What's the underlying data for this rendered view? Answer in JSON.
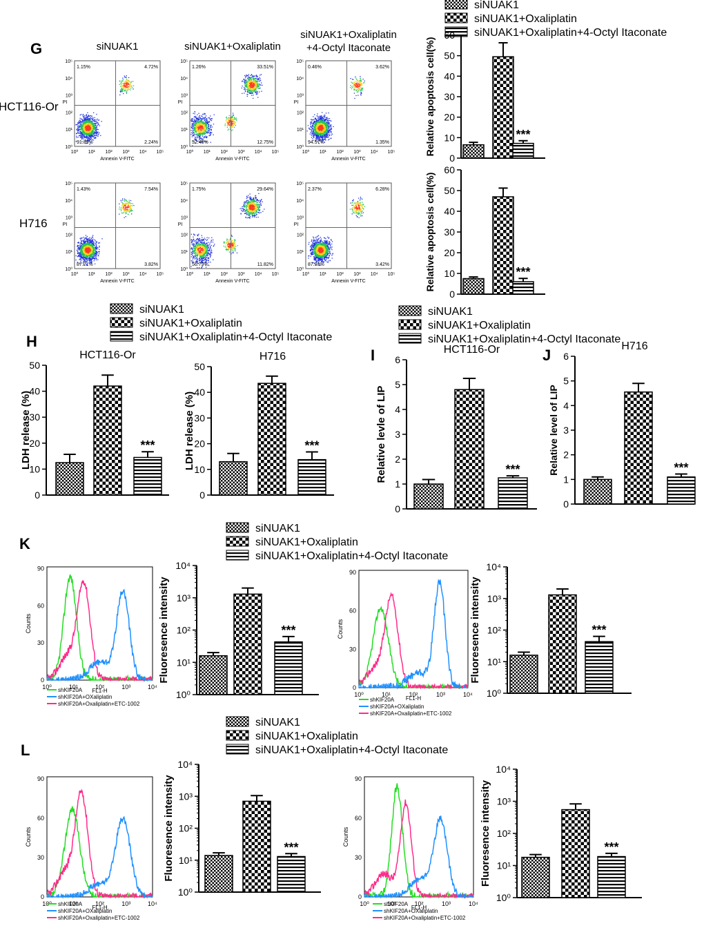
{
  "panel_letters": {
    "G": "G",
    "H": "H",
    "I": "I",
    "J": "J",
    "K": "K",
    "L": "L"
  },
  "legend": {
    "items": [
      "siNUAK1",
      "siNUAK1+Oxaliplatin",
      "siNUAK1+Oxaliplatin+4-Octyl Itaconate"
    ]
  },
  "flow_G": {
    "columns": [
      "siNUAK1",
      "siNUAK1+Oxaliplatin",
      "siNUAK1+Oxaliplatin\n+4-Octyl Itaconate"
    ],
    "rows": [
      "HCT116-Or",
      "H716"
    ],
    "xlabel": "Annexin V-FITC",
    "ylabel": "PI",
    "ticks": [
      "10⁰",
      "10¹",
      "10²",
      "10³",
      "10⁴",
      "10⁵"
    ],
    "quadrants": [
      [
        [
          "1.15%",
          "4.72%",
          "91.89%",
          "2.24%"
        ],
        [
          "1.26%",
          "33.51%",
          "52.48%",
          "12.75%"
        ],
        [
          "0.46%",
          "3.62%",
          "94.57%",
          "1.35%"
        ]
      ],
      [
        [
          "1.43%",
          "7.54%",
          "87.21%",
          "3.82%"
        ],
        [
          "1.75%",
          "29.64%",
          "56.79%",
          "11.82%"
        ],
        [
          "2.37%",
          "6.28%",
          "87.93%",
          "3.42%"
        ]
      ]
    ]
  },
  "hist": {
    "xlabel": "FL1-H",
    "ylabel": "Counts",
    "xticks": [
      "10⁰",
      "10¹",
      "10²",
      "10³",
      "10⁴"
    ],
    "yticks": [
      "0",
      "30",
      "60",
      "90"
    ],
    "legend": [
      "shKIF20A",
      "shKIF20A+OXaliplatin",
      "shKIF20A+Oxaliplatin+ETC-1002"
    ],
    "colors": [
      "#22dd22",
      "#1e90ff",
      "#ff2a8a"
    ]
  },
  "chart_data": [
    {
      "type": "bar",
      "id": "G1",
      "categories": [
        "siNUAK1",
        "siNUAK1+Oxaliplatin",
        "siNUAK1+Oxaliplatin+4-Octyl Itaconate"
      ],
      "values": [
        6.5,
        49.5,
        7.2
      ],
      "errors": [
        1.2,
        6.8,
        1.3
      ],
      "ylabel": "Relative apoptosis cell(%)",
      "ylim": [
        0,
        60
      ],
      "yticks": [
        0,
        10,
        20,
        30,
        40,
        50,
        60
      ],
      "annotation": "***"
    },
    {
      "type": "bar",
      "id": "G2",
      "categories": [
        "siNUAK1",
        "siNUAK1+Oxaliplatin",
        "siNUAK1+Oxaliplatin+4-Octyl Itaconate"
      ],
      "values": [
        7.5,
        47.0,
        6.0
      ],
      "errors": [
        0.8,
        4.2,
        1.6
      ],
      "ylabel": "Relative apoptosis cell(%)",
      "ylim": [
        0,
        60
      ],
      "yticks": [
        0,
        10,
        20,
        30,
        40,
        50,
        60
      ],
      "annotation": "***"
    },
    {
      "type": "bar",
      "id": "H1",
      "title": "HCT116-Or",
      "categories": [
        "siNUAK1",
        "siNUAK1+Oxaliplatin",
        "siNUAK1+Oxaliplatin+4-Octyl Itaconate"
      ],
      "values": [
        12.5,
        42.0,
        14.5
      ],
      "errors": [
        3.2,
        4.2,
        2.2
      ],
      "ylabel": "LDH release (%)",
      "ylim": [
        0,
        50
      ],
      "yticks": [
        0,
        10,
        20,
        30,
        40,
        50
      ],
      "annotation": "***"
    },
    {
      "type": "bar",
      "id": "H2",
      "title": "H716",
      "categories": [
        "siNUAK1",
        "siNUAK1+Oxaliplatin",
        "siNUAK1+Oxaliplatin+4-Octyl Itaconate"
      ],
      "values": [
        13.0,
        43.5,
        13.8
      ],
      "errors": [
        3.2,
        2.8,
        3.0
      ],
      "ylabel": "LDH release (%)",
      "ylim": [
        0,
        50
      ],
      "yticks": [
        0,
        10,
        20,
        30,
        40,
        50
      ],
      "annotation": "***"
    },
    {
      "type": "bar",
      "id": "I",
      "title": "HCT116-Or",
      "categories": [
        "siNUAK1",
        "siNUAK1+Oxaliplatin",
        "siNUAK1+Oxaliplatin+4-Octyl Itaconate"
      ],
      "values": [
        1.0,
        4.8,
        1.25
      ],
      "errors": [
        0.18,
        0.45,
        0.08
      ],
      "ylabel": "Relative levle of LIP",
      "ylim": [
        0,
        6
      ],
      "yticks": [
        0,
        1,
        2,
        3,
        4,
        5,
        6
      ],
      "annotation": "***"
    },
    {
      "type": "bar",
      "id": "J",
      "title": "H716",
      "categories": [
        "siNUAK1",
        "siNUAK1+Oxaliplatin",
        "siNUAK1+Oxaliplatin+4-Octyl Itaconate"
      ],
      "values": [
        1.0,
        4.55,
        1.1
      ],
      "errors": [
        0.1,
        0.35,
        0.12
      ],
      "ylabel": "Relative level of LIP",
      "ylim": [
        0,
        6
      ],
      "yticks": [
        0,
        1,
        2,
        3,
        4,
        5,
        6
      ],
      "annotation": "***"
    },
    {
      "type": "bar",
      "id": "K1",
      "log": true,
      "categories": [
        "siNUAK1",
        "siNUAK1+Oxaliplatin",
        "siNUAK1+Oxaliplatin+4-Octyl Itaconate"
      ],
      "values": [
        16,
        1300,
        43
      ],
      "errors": [
        4,
        700,
        20
      ],
      "ylabel": "Fluoresence intensity",
      "ylim": [
        1,
        10000
      ],
      "yticks": [
        "10⁰",
        "10¹",
        "10²",
        "10³",
        "10⁴"
      ],
      "annotation": "***"
    },
    {
      "type": "bar",
      "id": "K2",
      "log": true,
      "categories": [
        "siNUAK1",
        "siNUAK1+Oxaliplatin",
        "siNUAK1+Oxaliplatin+4-Octyl Itaconate"
      ],
      "values": [
        16,
        1300,
        43
      ],
      "errors": [
        4,
        700,
        20
      ],
      "ylabel": "Fluoresence intensity",
      "ylim": [
        1,
        10000
      ],
      "yticks": [
        "10⁰",
        "10¹",
        "10²",
        "10³",
        "10⁴"
      ],
      "annotation": "***"
    },
    {
      "type": "bar",
      "id": "L1",
      "log": true,
      "categories": [
        "siNUAK1",
        "siNUAK1+Oxaliplatin",
        "siNUAK1+Oxaliplatin+4-Octyl Itaconate"
      ],
      "values": [
        14,
        700,
        13
      ],
      "errors": [
        3,
        350,
        3
      ],
      "ylabel": "Fluoresence intensity",
      "ylim": [
        1,
        10000
      ],
      "yticks": [
        "10⁰",
        "10¹",
        "10²",
        "10³",
        "10⁴"
      ],
      "annotation": "***"
    },
    {
      "type": "bar",
      "id": "L2",
      "log": true,
      "categories": [
        "siNUAK1",
        "siNUAK1+Oxaliplatin",
        "siNUAK1+Oxaliplatin+4-Octyl Itaconate"
      ],
      "values": [
        18,
        550,
        19
      ],
      "errors": [
        4,
        280,
        5
      ],
      "ylabel": "Fluoresence intensity",
      "ylim": [
        1,
        10000
      ],
      "yticks": [
        "10⁰",
        "10¹",
        "10²",
        "10³",
        "10⁴"
      ],
      "annotation": "***"
    }
  ]
}
